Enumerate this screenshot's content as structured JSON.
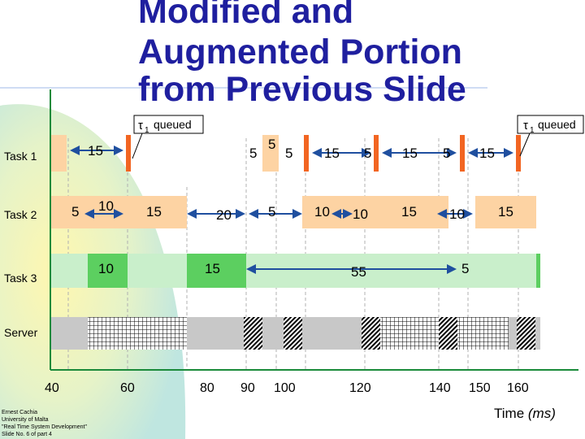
{
  "slide": {
    "title_lines": [
      "Modified and",
      "Augmented Portion",
      "from Previous Slide"
    ],
    "footer_lines": [
      "Ernest Cachia",
      "University of Malta",
      "\"Real Time System Development\"",
      "Slide No. 6 of part 4"
    ],
    "colors": {
      "title": "#1f1f9f",
      "orange": "#f26522",
      "light_orange": "#fdd3a3",
      "green": "#5ccf60",
      "light_green": "#c9efcb",
      "server_gray": "#c8c8c8",
      "axis": "#1a8a3a",
      "arrow": "#1f4f9f"
    }
  },
  "rows": {
    "task1": {
      "label": "Task 1",
      "label_value": "5"
    },
    "task2": {
      "label": "Task 2"
    },
    "task3": {
      "label": "Task 3"
    },
    "server": {
      "label": "Server"
    }
  },
  "annotations": {
    "queued_left": {
      "tau": "τ",
      "sub": "1",
      "text": "queued"
    },
    "queued_right": {
      "tau": "τ",
      "sub": "1",
      "text": "queued"
    }
  },
  "segment_labels": {
    "task1": [
      "15",
      "5",
      "5",
      "5",
      "15",
      "5",
      "15",
      "5",
      "15"
    ],
    "task2": [
      "5",
      "10",
      "15",
      "20",
      "5",
      "10",
      "10",
      "15",
      "10",
      "15"
    ],
    "task3": [
      "10",
      "15",
      "55",
      "5"
    ]
  },
  "axis": {
    "ticks": [
      "40",
      "60",
      "80",
      "90",
      "100",
      "120",
      "140",
      "150",
      "160"
    ],
    "title": "Time",
    "unit": "(ms)"
  }
}
